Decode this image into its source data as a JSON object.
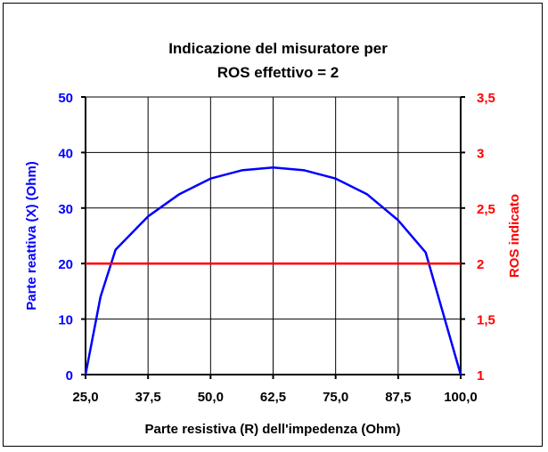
{
  "chart_data": {
    "type": "line",
    "title_lines": [
      "Indicazione del misuratore per",
      "ROS effettivo = 2"
    ],
    "xlabel": "Parte resistiva (R) dell'impedenza (Ohm)",
    "ylabel_left": "Parte reattiva (X) (Ohm)",
    "ylabel_right": "ROS indicato",
    "xlim": [
      25,
      100
    ],
    "ylim_left": [
      0,
      50
    ],
    "ylim_right": [
      1,
      3.5
    ],
    "x_ticks": [
      "25,0",
      "37,5",
      "50,0",
      "62,5",
      "75,0",
      "87,5",
      "100,0"
    ],
    "x_tick_values": [
      25,
      37.5,
      50,
      62.5,
      75,
      87.5,
      100
    ],
    "y_left_ticks": [
      "0",
      "10",
      "20",
      "30",
      "40",
      "50"
    ],
    "y_left_tick_values": [
      0,
      10,
      20,
      30,
      40,
      50
    ],
    "y_right_ticks": [
      "1",
      "1,5",
      "2",
      "2,5",
      "3",
      "3,5"
    ],
    "y_right_tick_values": [
      1,
      1.5,
      2,
      2.5,
      3,
      3.5
    ],
    "grid": true,
    "series": [
      {
        "axis": "left",
        "color": "#0000ff",
        "x": [
          25,
          28,
          31,
          37.5,
          43.75,
          50,
          56.25,
          62.5,
          68.75,
          75,
          81.25,
          87.5,
          93,
          100
        ],
        "y": [
          0,
          14,
          22.5,
          28.5,
          32.5,
          35.3,
          36.8,
          37.3,
          36.8,
          35.3,
          32.5,
          27.8,
          22,
          0
        ]
      },
      {
        "axis": "right",
        "color": "#ff0000",
        "x": [
          25,
          100
        ],
        "y": [
          2,
          2
        ]
      }
    ],
    "colors": {
      "left_axis": "#0000ff",
      "right_axis": "#ff0000",
      "axis": "#000000"
    }
  }
}
